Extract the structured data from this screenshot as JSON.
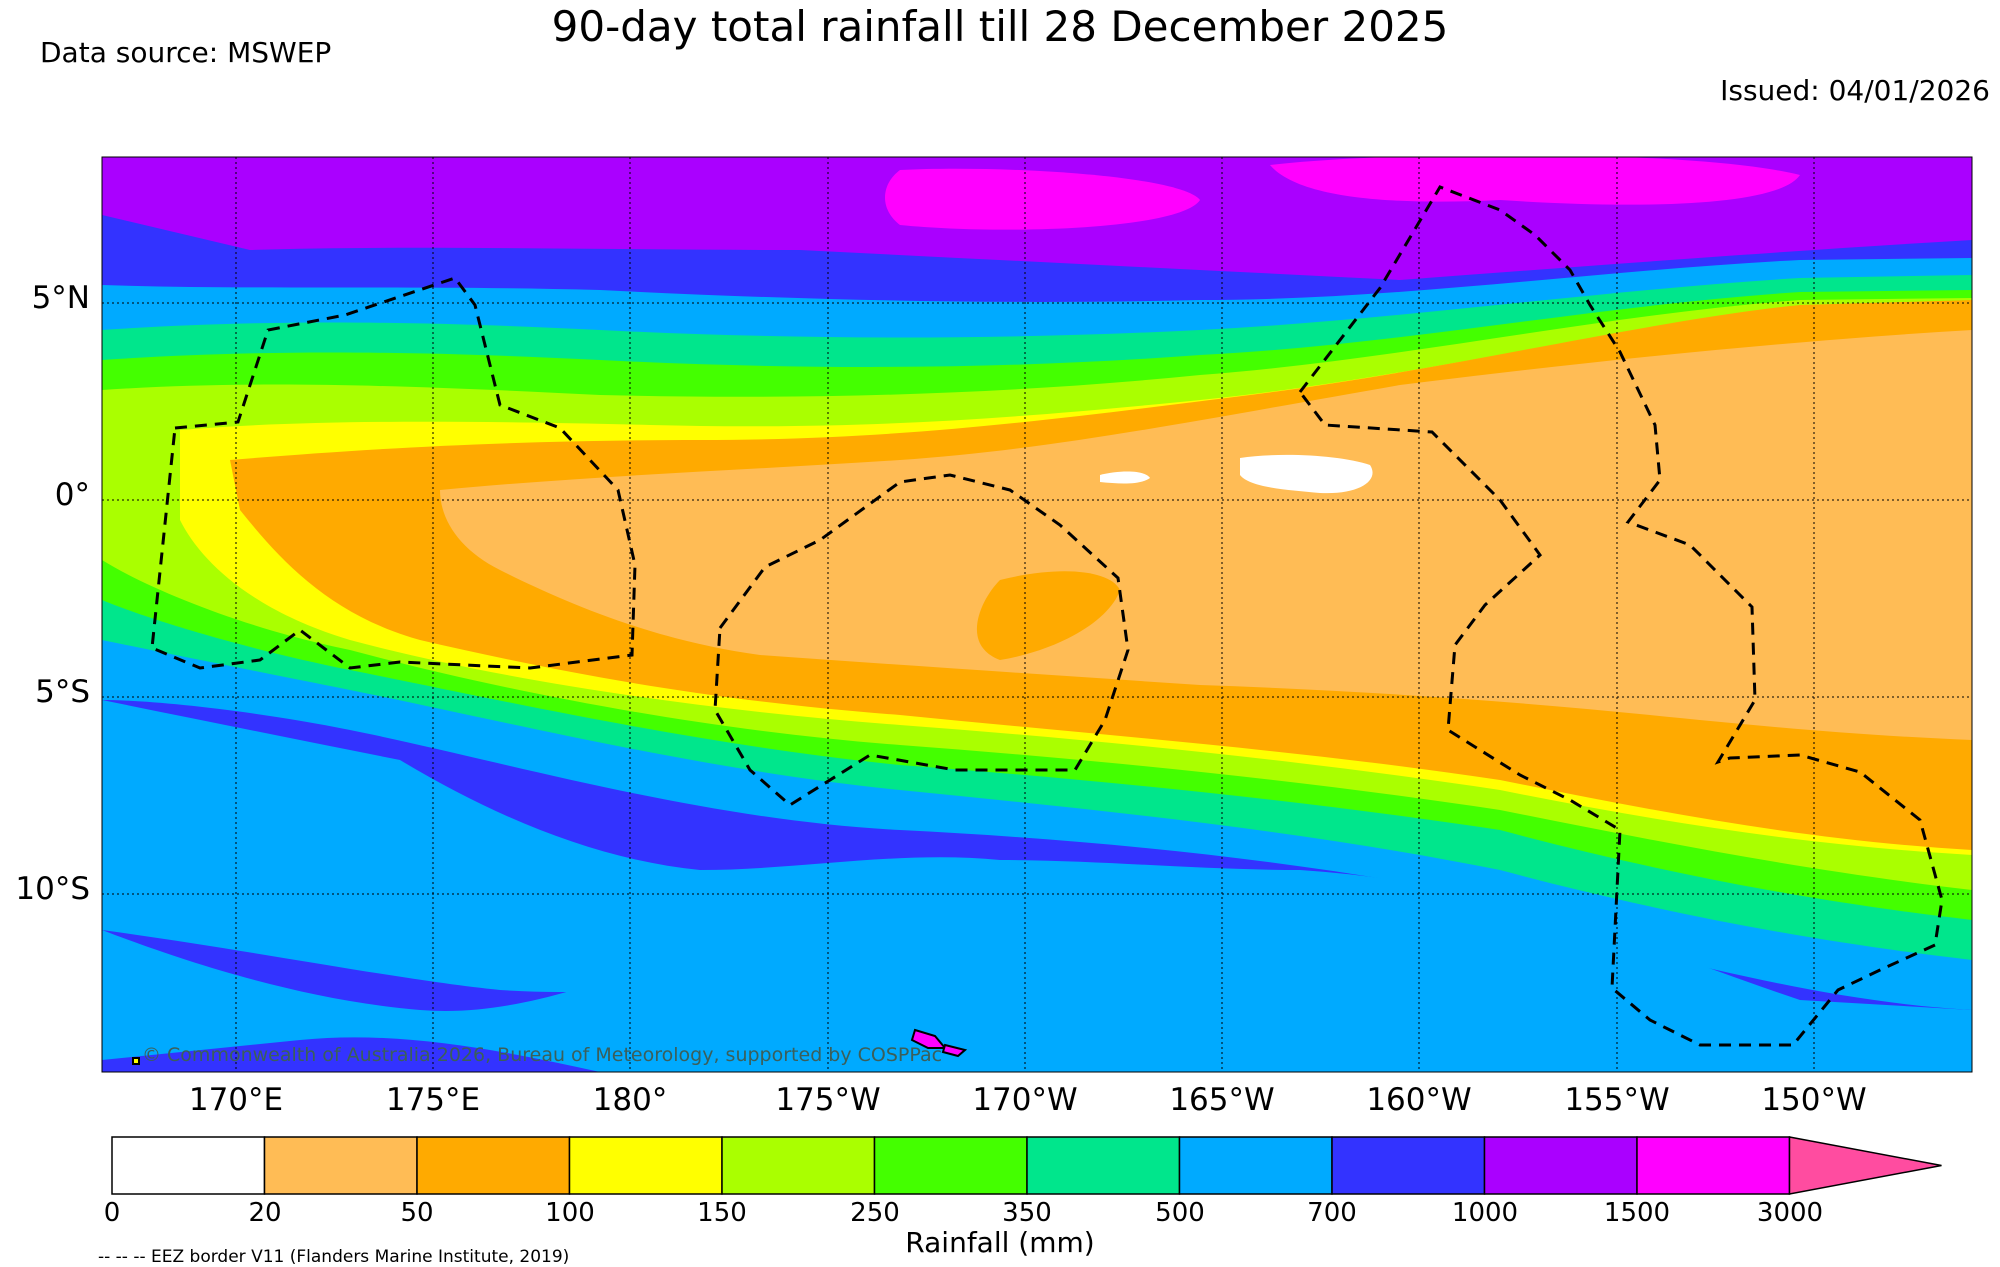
{
  "header": {
    "title": "90-day total rainfall till 28 December 2025",
    "source": "Data source: MSWEP",
    "issued": "Issued: 04/01/2026"
  },
  "map": {
    "credit": "© Commonwealth of Australia 2026, Bureau of Meteorology, supported by COSPPac",
    "lat_labels": [
      "5°N",
      "0°",
      "5°S",
      "10°S"
    ],
    "lon_labels": [
      "170°E",
      "175°E",
      "180°",
      "175°W",
      "170°W",
      "165°W",
      "160°W",
      "155°W",
      "150°W"
    ]
  },
  "legend": {
    "title": "Rainfall (mm)",
    "ticks": [
      "0",
      "20",
      "50",
      "100",
      "150",
      "250",
      "350",
      "500",
      "700",
      "1000",
      "1500",
      "3000"
    ],
    "colors": [
      "#ffffff",
      "#ffbc55",
      "#ffaa00",
      "#ffff00",
      "#aaff00",
      "#44ff00",
      "#00e68c",
      "#00aaff",
      "#3333ff",
      "#aa00ff",
      "#ff00ff",
      "#ff4ca0"
    ],
    "eez_note": "-- -- -- EEZ border V11 (Flanders Marine Institute, 2019)"
  }
}
